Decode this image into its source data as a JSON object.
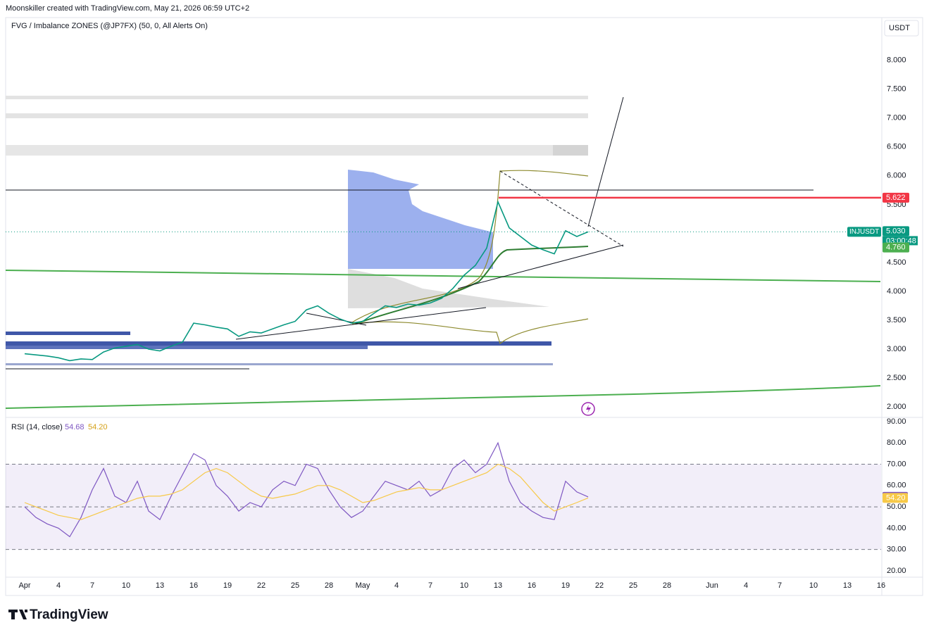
{
  "header": {
    "attribution": "Moonskiller created with TradingView.com, May 21, 2026 06:59 UTC+2",
    "currency": "USDT",
    "logo": "TradingView"
  },
  "chart_data": [
    {
      "type": "line",
      "title": "FVG / Imbalance ZONES (@JP7FX) (50, 0, All Alerts On)",
      "symbol": "INJUSDT",
      "countdown": "03:00:48",
      "color": "#089981",
      "x": [
        "2026-04-01",
        "2026-04-02",
        "2026-04-03",
        "2026-04-04",
        "2026-04-05",
        "2026-04-06",
        "2026-04-07",
        "2026-04-08",
        "2026-04-09",
        "2026-04-10",
        "2026-04-11",
        "2026-04-12",
        "2026-04-13",
        "2026-04-14",
        "2026-04-15",
        "2026-04-16",
        "2026-04-17",
        "2026-04-18",
        "2026-04-19",
        "2026-04-20",
        "2026-04-21",
        "2026-04-22",
        "2026-04-23",
        "2026-04-24",
        "2026-04-25",
        "2026-04-26",
        "2026-04-27",
        "2026-04-28",
        "2026-04-29",
        "2026-04-30",
        "2026-05-01",
        "2026-05-02",
        "2026-05-03",
        "2026-05-04",
        "2026-05-05",
        "2026-05-06",
        "2026-05-07",
        "2026-05-08",
        "2026-05-09",
        "2026-05-10",
        "2026-05-11",
        "2026-05-12",
        "2026-05-13",
        "2026-05-14",
        "2026-05-15",
        "2026-05-16",
        "2026-05-17",
        "2026-05-18",
        "2026-05-19",
        "2026-05-20",
        "2026-05-21"
      ],
      "values": [
        2.92,
        2.9,
        2.88,
        2.85,
        2.8,
        2.83,
        2.82,
        2.95,
        3.02,
        3.05,
        3.08,
        3.0,
        2.97,
        3.05,
        3.12,
        3.45,
        3.42,
        3.38,
        3.35,
        3.22,
        3.3,
        3.28,
        3.35,
        3.42,
        3.48,
        3.68,
        3.75,
        3.62,
        3.52,
        3.45,
        3.48,
        3.62,
        3.75,
        3.72,
        3.78,
        3.76,
        3.8,
        3.88,
        4.05,
        4.28,
        4.45,
        4.75,
        5.55,
        5.1,
        4.95,
        4.8,
        4.72,
        4.65,
        5.05,
        4.95,
        5.03
      ],
      "xlim": [
        "2026-03-30",
        "2026-06-16"
      ],
      "ylim": [
        1.83,
        8.74
      ],
      "yticks": [
        {
          "value": 2,
          "label": "2.000"
        },
        {
          "value": 2.5,
          "label": "2.500"
        },
        {
          "value": 3,
          "label": "3.000"
        },
        {
          "value": 3.5,
          "label": "3.500"
        },
        {
          "value": 4,
          "label": "4.000"
        },
        {
          "value": 4.5,
          "label": "4.500"
        },
        {
          "value": 5,
          "label": "5.000"
        },
        {
          "value": 5.5,
          "label": "5.500"
        },
        {
          "value": 6,
          "label": "6.000"
        },
        {
          "value": 6.5,
          "label": "6.500"
        },
        {
          "value": 7,
          "label": "7.000"
        },
        {
          "value": 7.5,
          "label": "7.500"
        },
        {
          "value": 8,
          "label": "8.000"
        }
      ],
      "markers": [
        {
          "value": 5.622,
          "label": "5.622",
          "color": "#f23645"
        },
        {
          "value": 5.03,
          "label": "5.030",
          "color": "#089981"
        },
        {
          "value": 4.76,
          "label": "4.760",
          "color": "#4caf50"
        }
      ]
    },
    {
      "type": "line",
      "title": "RSI (14, close)",
      "x": [
        "2026-04-01",
        "2026-04-02",
        "2026-04-03",
        "2026-04-04",
        "2026-04-05",
        "2026-04-06",
        "2026-04-07",
        "2026-04-08",
        "2026-04-09",
        "2026-04-10",
        "2026-04-11",
        "2026-04-12",
        "2026-04-13",
        "2026-04-14",
        "2026-04-15",
        "2026-04-16",
        "2026-04-17",
        "2026-04-18",
        "2026-04-19",
        "2026-04-20",
        "2026-04-21",
        "2026-04-22",
        "2026-04-23",
        "2026-04-24",
        "2026-04-25",
        "2026-04-26",
        "2026-04-27",
        "2026-04-28",
        "2026-04-29",
        "2026-04-30",
        "2026-05-01",
        "2026-05-02",
        "2026-05-03",
        "2026-05-04",
        "2026-05-05",
        "2026-05-06",
        "2026-05-07",
        "2026-05-08",
        "2026-05-09",
        "2026-05-10",
        "2026-05-11",
        "2026-05-12",
        "2026-05-13",
        "2026-05-14",
        "2026-05-15",
        "2026-05-16",
        "2026-05-17",
        "2026-05-18",
        "2026-05-19",
        "2026-05-20",
        "2026-05-21"
      ],
      "series": [
        {
          "color": "#7e57c2",
          "values": [
            50,
            45,
            42,
            40,
            36,
            45,
            58,
            68,
            55,
            52,
            62,
            48,
            44,
            55,
            65,
            75,
            72,
            60,
            55,
            48,
            52,
            50,
            58,
            62,
            60,
            70,
            68,
            58,
            50,
            45,
            48,
            55,
            62,
            60,
            58,
            62,
            55,
            58,
            68,
            72,
            66,
            70,
            80,
            62,
            52,
            48,
            45,
            44,
            62,
            57,
            54.68
          ],
          "last_value_label": "54.68"
        },
        {
          "color": "#f7c948",
          "values": [
            52,
            50,
            48,
            46,
            45,
            44,
            46,
            48,
            50,
            52,
            54,
            55,
            55,
            56,
            58,
            62,
            66,
            68,
            66,
            62,
            58,
            55,
            54,
            55,
            56,
            58,
            60,
            60,
            58,
            55,
            52,
            53,
            55,
            57,
            58,
            59,
            58,
            58,
            60,
            62,
            64,
            66,
            70,
            68,
            64,
            58,
            52,
            48,
            50,
            52,
            54.2
          ],
          "last_value_label": "54.20"
        }
      ],
      "hlines": [
        70,
        50,
        30
      ],
      "xlim": [
        "2026-03-30",
        "2026-06-16"
      ],
      "ylim": [
        17,
        92.3
      ],
      "yticks": [
        {
          "value": 20,
          "label": "20.00"
        },
        {
          "value": 30,
          "label": "30.00"
        },
        {
          "value": 40,
          "label": "40.00"
        },
        {
          "value": 50,
          "label": "50.00"
        },
        {
          "value": 60,
          "label": "60.00"
        },
        {
          "value": 70,
          "label": "70.00"
        },
        {
          "value": 80,
          "label": "80.00"
        },
        {
          "value": 90,
          "label": "90.00"
        }
      ],
      "xticks": [
        {
          "value": "2026-04-01",
          "label": "Apr"
        },
        {
          "value": "2026-04-04",
          "label": "4"
        },
        {
          "value": "2026-04-07",
          "label": "7"
        },
        {
          "value": "2026-04-10",
          "label": "10"
        },
        {
          "value": "2026-04-13",
          "label": "13"
        },
        {
          "value": "2026-04-16",
          "label": "16"
        },
        {
          "value": "2026-04-19",
          "label": "19"
        },
        {
          "value": "2026-04-22",
          "label": "22"
        },
        {
          "value": "2026-04-25",
          "label": "25"
        },
        {
          "value": "2026-04-28",
          "label": "28"
        },
        {
          "value": "2026-05-01",
          "label": "May"
        },
        {
          "value": "2026-05-04",
          "label": "4"
        },
        {
          "value": "2026-05-07",
          "label": "7"
        },
        {
          "value": "2026-05-10",
          "label": "10"
        },
        {
          "value": "2026-05-13",
          "label": "13"
        },
        {
          "value": "2026-05-16",
          "label": "16"
        },
        {
          "value": "2026-05-19",
          "label": "19"
        },
        {
          "value": "2026-05-22",
          "label": "22"
        },
        {
          "value": "2026-05-25",
          "label": "25"
        },
        {
          "value": "2026-05-28",
          "label": "28"
        },
        {
          "value": "2026-06-01",
          "label": "Jun"
        },
        {
          "value": "2026-06-04",
          "label": "4"
        },
        {
          "value": "2026-06-07",
          "label": "7"
        },
        {
          "value": "2026-06-10",
          "label": "10"
        },
        {
          "value": "2026-06-13",
          "label": "13"
        },
        {
          "value": "2026-06-16",
          "label": "16"
        }
      ]
    }
  ]
}
